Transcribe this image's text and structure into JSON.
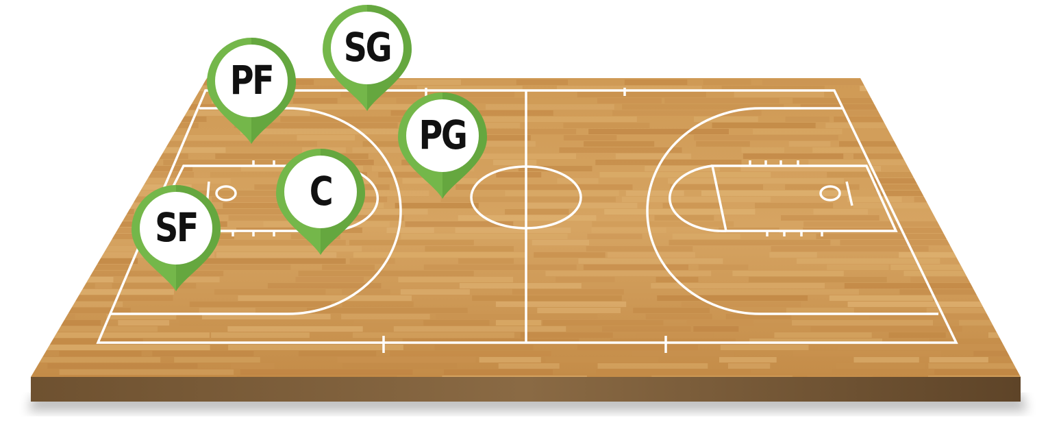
{
  "colors": {
    "wood_light": "#d9a862",
    "wood_mid": "#c68e4a",
    "wood_dark": "#a87338",
    "court_edge": "#7a5a36",
    "lines": "#ffffff",
    "marker_green": "#74b74a",
    "marker_green_dark": "#5a9a36",
    "marker_face": "#ffffff"
  },
  "positions": [
    {
      "id": "pf",
      "label": "PF"
    },
    {
      "id": "sg",
      "label": "SG"
    },
    {
      "id": "pg",
      "label": "PG"
    },
    {
      "id": "c",
      "label": "C"
    },
    {
      "id": "sf",
      "label": "SF"
    }
  ],
  "marker_icon": "map-pin-icon"
}
